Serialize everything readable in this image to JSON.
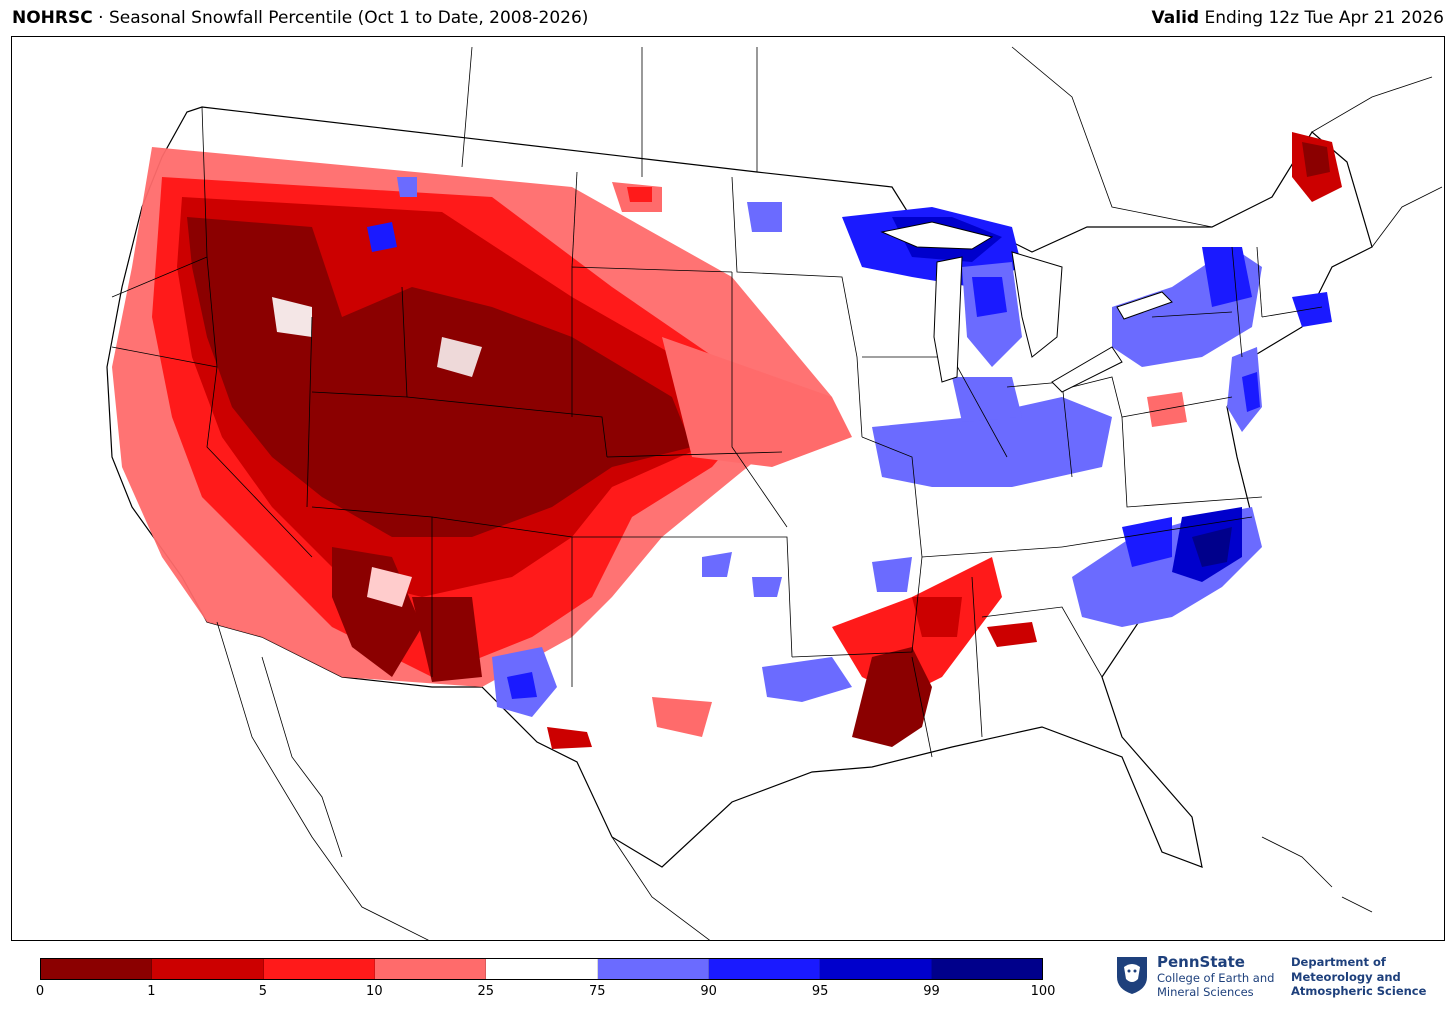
{
  "header": {
    "title_org": "NOHRSC",
    "title_sep": " · ",
    "title_text": "Seasonal Snowfall Percentile (Oct 1 to Date, 2008-2026)",
    "valid_bold": "Valid",
    "valid_text": " Ending 12z Tue Apr 21 2026"
  },
  "legend": {
    "colors": [
      "#8b0000",
      "#cc0000",
      "#ff1a1a",
      "#ff6b6b",
      "#ffffff",
      "#6b6bff",
      "#1a1aff",
      "#0000cc",
      "#00008b"
    ],
    "tick_labels": [
      "0",
      "1",
      "5",
      "10",
      "25",
      "75",
      "90",
      "95",
      "99",
      "100"
    ],
    "tick_values": [
      0,
      1,
      2,
      3,
      4,
      5,
      6,
      7,
      8,
      9
    ]
  },
  "logo": {
    "name": "PennState",
    "college": "College of Earth and Mineral Sciences",
    "department": "Department of Meteorology and Atmospheric Science",
    "icon": "nittany-lion-shield-icon"
  },
  "map": {
    "region": "Contiguous United States",
    "colors": {
      "p0_1": "#8b0000",
      "p1_5": "#cc0000",
      "p5_10": "#ff1a1a",
      "p10_25": "#ff6b6b",
      "p75_90": "#6b6bff",
      "p90_95": "#1a1aff",
      "p95_99": "#0000cc",
      "p99_100": "#00008b",
      "boundary": "#000000"
    }
  }
}
